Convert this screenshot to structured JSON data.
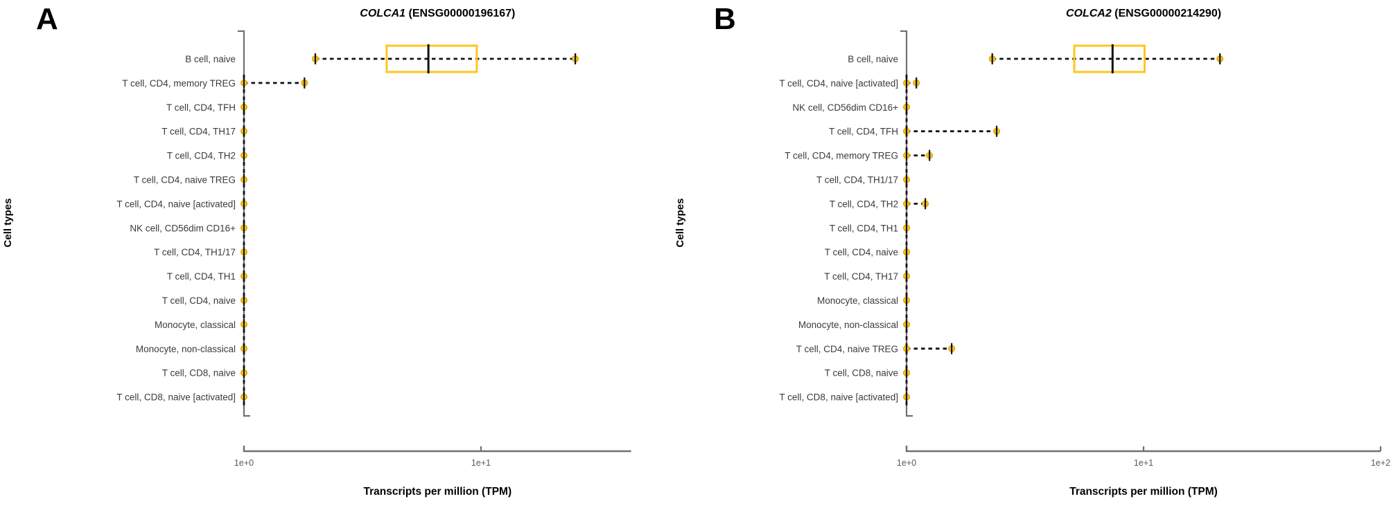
{
  "figure": {
    "xlabel": "Transcripts per million (TPM)",
    "ylabel": "Cell types",
    "colors": {
      "accent_gold": "#FFC61E",
      "accent_gold_dark": "#D9A400",
      "mark_line": "#111111",
      "axis_line": "#707070",
      "row_label_text": "#3b3b3b",
      "tick_text": "#5a5a5a",
      "title_text": "#000000"
    }
  },
  "chart_data": [
    {
      "type": "boxplot",
      "panel_letter": "A",
      "title_gene": "COLCA1",
      "title_id": " (ENSG00000196167)",
      "xlabel": "Transcripts per million (TPM)",
      "ylabel": "Cell types",
      "xscale": "log10",
      "xlim": [
        1,
        43
      ],
      "xticks": [
        {
          "value": 1,
          "label": "1e+0"
        },
        {
          "value": 10,
          "label": "1e+1"
        }
      ],
      "rows": [
        {
          "label": "B cell, naive",
          "type": "box",
          "lo": 2.0,
          "q1": 4.0,
          "median": 6.0,
          "q3": 9.6,
          "hi": 25
        },
        {
          "label": "T cell, CD4, memory TREG",
          "type": "point-whisker",
          "point": 1.0,
          "hi": 1.8
        },
        {
          "label": "T cell, CD4, TFH",
          "type": "point",
          "point": 1.0
        },
        {
          "label": "T cell, CD4, TH17",
          "type": "point",
          "point": 1.0
        },
        {
          "label": "T cell, CD4, TH2",
          "type": "point",
          "point": 1.0
        },
        {
          "label": "T cell, CD4, naive TREG",
          "type": "point",
          "point": 1.0
        },
        {
          "label": "T cell, CD4, naive [activated]",
          "type": "point",
          "point": 1.0
        },
        {
          "label": "NK cell, CD56dim CD16+",
          "type": "point",
          "point": 1.0
        },
        {
          "label": "T cell, CD4, TH1/17",
          "type": "point",
          "point": 1.0
        },
        {
          "label": "T cell, CD4, TH1",
          "type": "point",
          "point": 1.0
        },
        {
          "label": "T cell, CD4, naive",
          "type": "point",
          "point": 1.0
        },
        {
          "label": "Monocyte, classical",
          "type": "point",
          "point": 1.0
        },
        {
          "label": "Monocyte, non-classical",
          "type": "point",
          "point": 1.0
        },
        {
          "label": "T cell, CD8, naive",
          "type": "point",
          "point": 1.0
        },
        {
          "label": "T cell, CD8, naive [activated]",
          "type": "point",
          "point": 1.0
        }
      ]
    },
    {
      "type": "boxplot",
      "panel_letter": "B",
      "title_gene": "COLCA2",
      "title_id": " (ENSG00000214290)",
      "xlabel": "Transcripts per million (TPM)",
      "ylabel": "Cell types",
      "xscale": "log10",
      "xlim": [
        1,
        100
      ],
      "xticks": [
        {
          "value": 1,
          "label": "1e+0"
        },
        {
          "value": 10,
          "label": "1e+1"
        },
        {
          "value": 100,
          "label": "1e+2"
        }
      ],
      "rows": [
        {
          "label": "B cell, naive",
          "type": "box",
          "lo": 2.3,
          "q1": 5.1,
          "median": 7.4,
          "q3": 10.1,
          "hi": 21
        },
        {
          "label": "T cell, CD4, naive [activated]",
          "type": "point-whisker",
          "point": 1.0,
          "hi": 1.1
        },
        {
          "label": "NK cell, CD56dim CD16+",
          "type": "point",
          "point": 1.0
        },
        {
          "label": "T cell, CD4, TFH",
          "type": "point-whisker",
          "point": 1.0,
          "hi": 2.4
        },
        {
          "label": "T cell, CD4, memory TREG",
          "type": "point-whisker",
          "point": 1.0,
          "hi": 1.25
        },
        {
          "label": "T cell, CD4, TH1/17",
          "type": "point",
          "point": 1.0
        },
        {
          "label": "T cell, CD4, TH2",
          "type": "point-whisker",
          "point": 1.0,
          "hi": 1.2
        },
        {
          "label": "T cell, CD4, TH1",
          "type": "point",
          "point": 1.0
        },
        {
          "label": "T cell, CD4, naive",
          "type": "point",
          "point": 1.0
        },
        {
          "label": "T cell, CD4, TH17",
          "type": "point",
          "point": 1.0
        },
        {
          "label": "Monocyte, classical",
          "type": "point",
          "point": 1.0
        },
        {
          "label": "Monocyte, non-classical",
          "type": "point",
          "point": 1.0
        },
        {
          "label": "T cell, CD4, naive TREG",
          "type": "point-whisker",
          "point": 1.0,
          "hi": 1.55
        },
        {
          "label": "T cell, CD8, naive",
          "type": "point",
          "point": 1.0
        },
        {
          "label": "T cell, CD8, naive [activated]",
          "type": "point",
          "point": 1.0
        }
      ]
    }
  ]
}
